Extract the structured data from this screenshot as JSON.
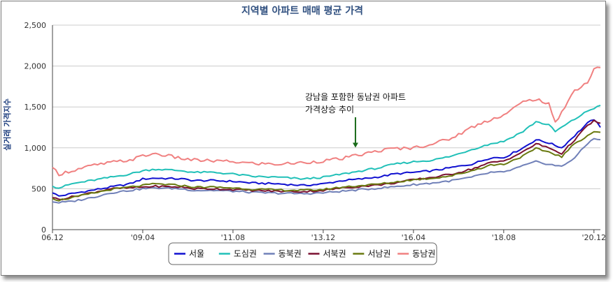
{
  "chart_data": {
    "type": "line",
    "title": "지역별 아파트 매매 평균 가격",
    "xlabel": "",
    "ylabel": "실거래 가격지수",
    "ylim": [
      0,
      2500
    ],
    "yticks": [
      "0",
      "500",
      "1,000",
      "1,500",
      "2,000",
      "2,500"
    ],
    "ytick_values": [
      0,
      500,
      1000,
      1500,
      2000,
      2500
    ],
    "xticks": [
      "06.12",
      "'09.04",
      "'11.08",
      "'13.12",
      "'16.04",
      "'18.08",
      "'20.12"
    ],
    "xtick_months": [
      0,
      28,
      56,
      84,
      112,
      140,
      168
    ],
    "x_range_months": [
      0,
      170
    ],
    "grid": "horizontal",
    "legend_position": "bottom-center",
    "annotation": {
      "lines": [
        "강남을 포함한 동남권 아파트",
        "가격상승 추이"
      ],
      "points_to_month": 94,
      "points_to_value": 900,
      "color": "#1a6b1a"
    },
    "series": [
      {
        "name": "서울",
        "color": "#1010d0",
        "points": [
          [
            0,
            450
          ],
          [
            2,
            410
          ],
          [
            6,
            440
          ],
          [
            12,
            480
          ],
          [
            18,
            520
          ],
          [
            24,
            560
          ],
          [
            28,
            620
          ],
          [
            32,
            630
          ],
          [
            40,
            620
          ],
          [
            44,
            600
          ],
          [
            50,
            600
          ],
          [
            56,
            590
          ],
          [
            62,
            570
          ],
          [
            70,
            560
          ],
          [
            78,
            540
          ],
          [
            84,
            560
          ],
          [
            90,
            600
          ],
          [
            96,
            620
          ],
          [
            102,
            650
          ],
          [
            106,
            680
          ],
          [
            112,
            700
          ],
          [
            118,
            720
          ],
          [
            124,
            760
          ],
          [
            130,
            800
          ],
          [
            136,
            880
          ],
          [
            140,
            880
          ],
          [
            146,
            1000
          ],
          [
            150,
            1100
          ],
          [
            154,
            1060
          ],
          [
            158,
            1000
          ],
          [
            162,
            1150
          ],
          [
            166,
            1300
          ],
          [
            168,
            1350
          ],
          [
            170,
            1250
          ]
        ]
      },
      {
        "name": "도심권",
        "color": "#20c0b8",
        "points": [
          [
            0,
            530
          ],
          [
            2,
            510
          ],
          [
            6,
            560
          ],
          [
            12,
            600
          ],
          [
            18,
            640
          ],
          [
            24,
            680
          ],
          [
            28,
            720
          ],
          [
            32,
            740
          ],
          [
            40,
            720
          ],
          [
            44,
            700
          ],
          [
            50,
            700
          ],
          [
            56,
            680
          ],
          [
            62,
            650
          ],
          [
            70,
            640
          ],
          [
            78,
            620
          ],
          [
            84,
            640
          ],
          [
            90,
            680
          ],
          [
            96,
            720
          ],
          [
            102,
            760
          ],
          [
            106,
            800
          ],
          [
            112,
            830
          ],
          [
            118,
            850
          ],
          [
            124,
            900
          ],
          [
            130,
            980
          ],
          [
            136,
            1050
          ],
          [
            140,
            1080
          ],
          [
            146,
            1200
          ],
          [
            150,
            1320
          ],
          [
            154,
            1280
          ],
          [
            156,
            1200
          ],
          [
            162,
            1350
          ],
          [
            166,
            1450
          ],
          [
            170,
            1520
          ]
        ]
      },
      {
        "name": "동북권",
        "color": "#7080b8",
        "points": [
          [
            0,
            340
          ],
          [
            2,
            330
          ],
          [
            6,
            345
          ],
          [
            12,
            390
          ],
          [
            18,
            450
          ],
          [
            24,
            480
          ],
          [
            28,
            500
          ],
          [
            32,
            510
          ],
          [
            40,
            500
          ],
          [
            44,
            480
          ],
          [
            50,
            480
          ],
          [
            56,
            470
          ],
          [
            62,
            455
          ],
          [
            70,
            445
          ],
          [
            78,
            440
          ],
          [
            84,
            450
          ],
          [
            90,
            470
          ],
          [
            96,
            490
          ],
          [
            102,
            510
          ],
          [
            106,
            525
          ],
          [
            112,
            550
          ],
          [
            118,
            570
          ],
          [
            124,
            600
          ],
          [
            130,
            640
          ],
          [
            136,
            700
          ],
          [
            140,
            700
          ],
          [
            146,
            780
          ],
          [
            150,
            830
          ],
          [
            154,
            800
          ],
          [
            158,
            770
          ],
          [
            162,
            880
          ],
          [
            166,
            1050
          ],
          [
            168,
            1120
          ],
          [
            170,
            1100
          ]
        ]
      },
      {
        "name": "서북권",
        "color": "#7a1030",
        "points": [
          [
            0,
            390
          ],
          [
            2,
            370
          ],
          [
            6,
            400
          ],
          [
            12,
            450
          ],
          [
            18,
            500
          ],
          [
            24,
            510
          ],
          [
            28,
            520
          ],
          [
            32,
            530
          ],
          [
            40,
            520
          ],
          [
            44,
            500
          ],
          [
            50,
            500
          ],
          [
            56,
            490
          ],
          [
            62,
            480
          ],
          [
            70,
            470
          ],
          [
            78,
            465
          ],
          [
            84,
            480
          ],
          [
            90,
            510
          ],
          [
            96,
            530
          ],
          [
            102,
            550
          ],
          [
            106,
            570
          ],
          [
            112,
            610
          ],
          [
            118,
            640
          ],
          [
            124,
            680
          ],
          [
            130,
            740
          ],
          [
            136,
            820
          ],
          [
            140,
            840
          ],
          [
            146,
            950
          ],
          [
            150,
            1050
          ],
          [
            154,
            1000
          ],
          [
            158,
            930
          ],
          [
            162,
            1100
          ],
          [
            166,
            1270
          ],
          [
            168,
            1330
          ],
          [
            170,
            1300
          ]
        ]
      },
      {
        "name": "서남권",
        "color": "#6a7a10",
        "points": [
          [
            0,
            380
          ],
          [
            2,
            360
          ],
          [
            6,
            390
          ],
          [
            12,
            440
          ],
          [
            18,
            490
          ],
          [
            24,
            520
          ],
          [
            28,
            540
          ],
          [
            32,
            560
          ],
          [
            40,
            540
          ],
          [
            44,
            520
          ],
          [
            50,
            520
          ],
          [
            56,
            510
          ],
          [
            62,
            495
          ],
          [
            70,
            485
          ],
          [
            78,
            480
          ],
          [
            84,
            490
          ],
          [
            90,
            520
          ],
          [
            96,
            540
          ],
          [
            102,
            560
          ],
          [
            106,
            580
          ],
          [
            112,
            610
          ],
          [
            118,
            630
          ],
          [
            124,
            660
          ],
          [
            130,
            720
          ],
          [
            136,
            790
          ],
          [
            140,
            800
          ],
          [
            146,
            900
          ],
          [
            150,
            990
          ],
          [
            154,
            950
          ],
          [
            158,
            890
          ],
          [
            162,
            1050
          ],
          [
            166,
            1150
          ],
          [
            168,
            1200
          ],
          [
            170,
            1190
          ]
        ]
      },
      {
        "name": "동남권",
        "color": "#f08080",
        "points": [
          [
            0,
            760
          ],
          [
            2,
            680
          ],
          [
            6,
            720
          ],
          [
            12,
            780
          ],
          [
            18,
            820
          ],
          [
            24,
            850
          ],
          [
            28,
            900
          ],
          [
            32,
            930
          ],
          [
            40,
            870
          ],
          [
            44,
            850
          ],
          [
            50,
            840
          ],
          [
            56,
            830
          ],
          [
            62,
            810
          ],
          [
            70,
            800
          ],
          [
            78,
            820
          ],
          [
            84,
            840
          ],
          [
            90,
            870
          ],
          [
            96,
            920
          ],
          [
            102,
            970
          ],
          [
            106,
            990
          ],
          [
            112,
            1000
          ],
          [
            118,
            1050
          ],
          [
            124,
            1120
          ],
          [
            130,
            1250
          ],
          [
            136,
            1350
          ],
          [
            140,
            1400
          ],
          [
            146,
            1560
          ],
          [
            150,
            1600
          ],
          [
            154,
            1530
          ],
          [
            156,
            1300
          ],
          [
            160,
            1580
          ],
          [
            162,
            1700
          ],
          [
            166,
            1800
          ],
          [
            168,
            1960
          ],
          [
            170,
            1980
          ]
        ]
      }
    ]
  }
}
